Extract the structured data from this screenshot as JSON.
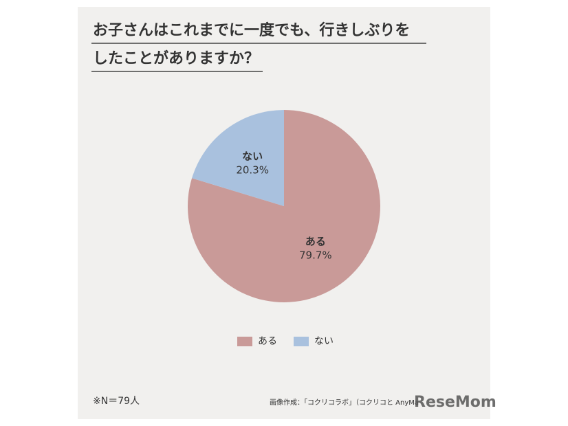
{
  "chart_data": {
    "type": "pie",
    "title_lines": [
      "お子さんはこれまでに一度でも、行きしぶりを",
      "したことがありますか？"
    ],
    "categories": [
      "ある",
      "ない"
    ],
    "values": [
      79.7,
      20.3
    ],
    "value_labels": [
      "79.7%",
      "20.3%"
    ],
    "colors": [
      "#c99a98",
      "#a9c1de"
    ],
    "legend": "bottom",
    "note": "※N＝79人",
    "source": "画像作成：「コクリコラボ」（コクリコと AnyMa",
    "watermark": "ReseMom"
  }
}
